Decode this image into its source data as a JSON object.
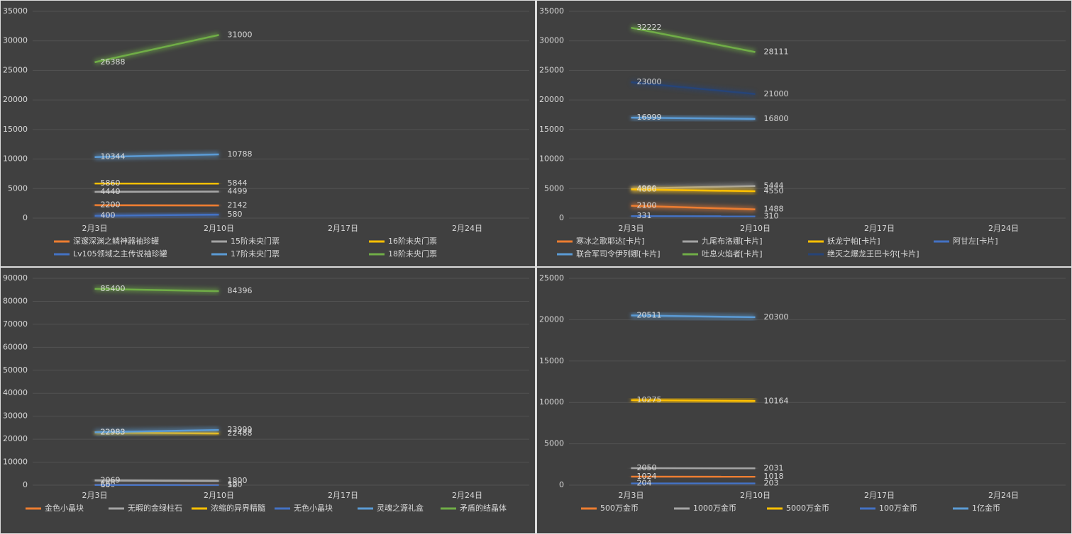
{
  "chart_data": [
    {
      "type": "line",
      "categories": [
        "2月3日",
        "2月10日",
        "2月17日",
        "2月24日"
      ],
      "ylim": [
        0,
        35000
      ],
      "yticks": [
        0,
        5000,
        10000,
        15000,
        20000,
        25000,
        30000,
        35000
      ],
      "grid": true,
      "series": [
        {
          "name": "深邃深渊之鳞神器袖珍罐",
          "color": "#ed7d31",
          "values": [
            2200,
            2142,
            null,
            null
          ]
        },
        {
          "name": "15阶未央门票",
          "color": "#a5a5a5",
          "values": [
            4440,
            4499,
            null,
            null
          ]
        },
        {
          "name": "16阶未央门票",
          "color": "#ffc000",
          "values": [
            5860,
            5844,
            null,
            null
          ]
        },
        {
          "name": "Lv105领域之主传说袖珍罐",
          "color": "#4472c4",
          "values": [
            400,
            580,
            null,
            null
          ]
        },
        {
          "name": "17阶未央门票",
          "color": "#5b9bd5",
          "values": [
            10344,
            10788,
            null,
            null
          ]
        },
        {
          "name": "18阶未央门票",
          "color": "#70ad47",
          "values": [
            26388,
            31000,
            null,
            null
          ]
        }
      ]
    },
    {
      "type": "line",
      "categories": [
        "2月3日",
        "2月10日",
        "2月17日",
        "2月24日"
      ],
      "ylim": [
        0,
        35000
      ],
      "yticks": [
        0,
        5000,
        10000,
        15000,
        20000,
        25000,
        30000,
        35000
      ],
      "grid": true,
      "series": [
        {
          "name": "寒冰之歌耶达[卡片]",
          "color": "#ed7d31",
          "values": [
            2100,
            1488,
            null,
            null
          ]
        },
        {
          "name": "九尾布洛娜[卡片]",
          "color": "#a5a5a5",
          "values": [
            4990,
            5444,
            null,
            null
          ]
        },
        {
          "name": "妖龙宁帕[卡片]",
          "color": "#ffc000",
          "values": [
            4866,
            4550,
            null,
            null
          ]
        },
        {
          "name": "阿甘左[卡片]",
          "color": "#4472c4",
          "values": [
            331,
            310,
            null,
            null
          ]
        },
        {
          "name": "联合军司令伊列娜[卡片]",
          "color": "#5b9bd5",
          "values": [
            16999,
            16800,
            null,
            null
          ]
        },
        {
          "name": "吐息火焰者[卡片]",
          "color": "#70ad47",
          "values": [
            32222,
            28111,
            null,
            null
          ]
        },
        {
          "name": "绝灭之爆龙王巴卡尔[卡片]",
          "color": "#264478",
          "values": [
            23000,
            21000,
            null,
            null
          ]
        }
      ]
    },
    {
      "type": "line",
      "categories": [
        "2月3日",
        "2月10日",
        "2月17日",
        "2月24日"
      ],
      "ylim": [
        0,
        90000
      ],
      "yticks": [
        0,
        10000,
        20000,
        30000,
        40000,
        50000,
        60000,
        70000,
        80000,
        90000
      ],
      "grid": true,
      "series": [
        {
          "name": "金色小晶块",
          "color": "#ed7d31",
          "values": [
            150,
            120,
            null,
            null
          ]
        },
        {
          "name": "无暇的金绿柱石",
          "color": "#a5a5a5",
          "values": [
            2069,
            1800,
            null,
            null
          ]
        },
        {
          "name": "浓缩的异界精髓",
          "color": "#ffc000",
          "values": [
            22900,
            22488,
            null,
            null
          ]
        },
        {
          "name": "无色小晶块",
          "color": "#4472c4",
          "values": [
            60,
            50,
            null,
            null
          ]
        },
        {
          "name": "灵魂之源礼盒",
          "color": "#5b9bd5",
          "values": [
            22983,
            23999,
            null,
            null
          ]
        },
        {
          "name": "矛盾的结晶体",
          "color": "#70ad47",
          "values": [
            85400,
            84396,
            null,
            null
          ]
        }
      ]
    },
    {
      "type": "line",
      "categories": [
        "2月3日",
        "2月10日",
        "2月17日",
        "2月24日"
      ],
      "ylim": [
        0,
        25000
      ],
      "yticks": [
        0,
        5000,
        10000,
        15000,
        20000,
        25000
      ],
      "grid": true,
      "series": [
        {
          "name": "500万金币",
          "color": "#ed7d31",
          "values": [
            1024,
            1018,
            null,
            null
          ]
        },
        {
          "name": "1000万金币",
          "color": "#a5a5a5",
          "values": [
            2050,
            2031,
            null,
            null
          ]
        },
        {
          "name": "5000万金币",
          "color": "#ffc000",
          "values": [
            10275,
            10164,
            null,
            null
          ]
        },
        {
          "name": "100万金币",
          "color": "#4472c4",
          "values": [
            204,
            203,
            null,
            null
          ]
        },
        {
          "name": "1亿金币",
          "color": "#5b9bd5",
          "values": [
            20511,
            20300,
            null,
            null
          ]
        }
      ]
    }
  ]
}
